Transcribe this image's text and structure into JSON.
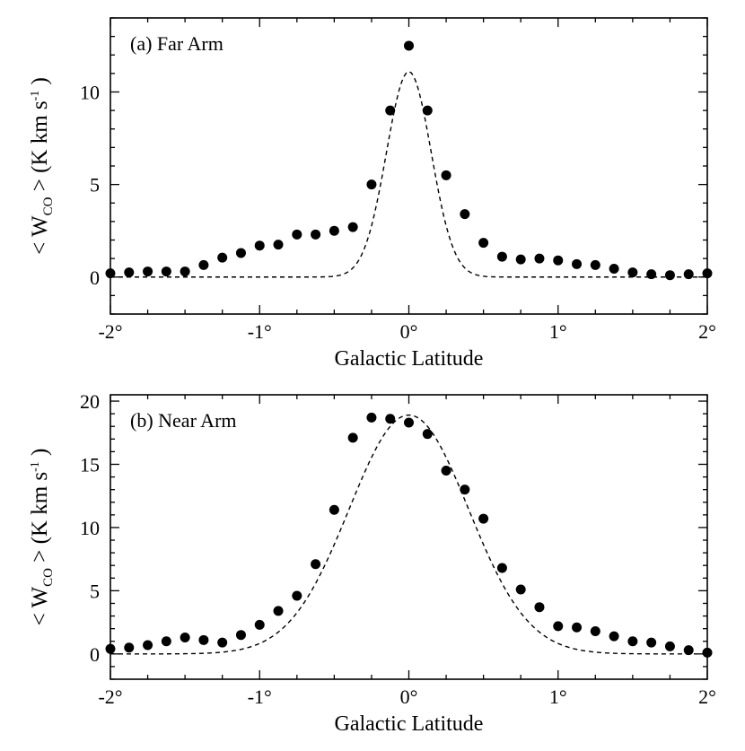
{
  "chart_data": [
    {
      "type": "scatter",
      "panel_label": "(a) Far Arm",
      "xlabel": "Galactic Latitude",
      "ylabel": {
        "prefix": "< W",
        "sub": "CO",
        "mid": " >  (K km s",
        "sup": "-1",
        "suffix": " )"
      },
      "xlim": [
        -2,
        2
      ],
      "ylim": [
        -2,
        14
      ],
      "xticks": [
        -2,
        -1,
        0,
        1,
        2
      ],
      "xticklabels": [
        "-2°",
        "-1°",
        "0°",
        "1°",
        "2°"
      ],
      "yticks": [
        0,
        5,
        10
      ],
      "yticklabels": [
        "0",
        "5",
        "10"
      ],
      "grid": false,
      "fit": {
        "style": "dashed",
        "amplitude": 11.1,
        "sigma": 0.15
      },
      "series": [
        {
          "x": [
            -2.0,
            -1.875,
            -1.75,
            -1.625,
            -1.5,
            -1.375,
            -1.25,
            -1.125,
            -1.0,
            -0.875,
            -0.75,
            -0.625,
            -0.5,
            -0.375,
            -0.25,
            -0.125,
            0.0,
            0.125,
            0.25,
            0.375,
            0.5,
            0.625,
            0.75,
            0.875,
            1.0,
            1.125,
            1.25,
            1.375,
            1.5,
            1.625,
            1.75,
            1.875,
            2.0
          ],
          "y": [
            0.2,
            0.25,
            0.3,
            0.3,
            0.3,
            0.65,
            1.05,
            1.3,
            1.7,
            1.75,
            2.3,
            2.3,
            2.5,
            2.7,
            5.0,
            9.0,
            12.5,
            9.0,
            5.5,
            3.4,
            1.85,
            1.1,
            0.95,
            1.0,
            0.9,
            0.7,
            0.65,
            0.45,
            0.25,
            0.15,
            0.1,
            0.15,
            0.2
          ]
        }
      ]
    },
    {
      "type": "scatter",
      "panel_label": "(b) Near Arm",
      "xlabel": "Galactic Latitude",
      "ylabel": {
        "prefix": "< W",
        "sub": "CO",
        "mid": " >  (K km s",
        "sup": "-1",
        "suffix": " )"
      },
      "xlim": [
        -2,
        2
      ],
      "ylim": [
        -2,
        20.5
      ],
      "xticks": [
        -2,
        -1,
        0,
        1,
        2
      ],
      "xticklabels": [
        "-2°",
        "-1°",
        "0°",
        "1°",
        "2°"
      ],
      "yticks": [
        0,
        5,
        10,
        15,
        20
      ],
      "yticklabels": [
        "0",
        "5",
        "10",
        "15",
        "20"
      ],
      "grid": false,
      "fit": {
        "style": "dashed",
        "amplitude": 18.9,
        "sigma": 0.4
      },
      "series": [
        {
          "x": [
            -2.0,
            -1.875,
            -1.75,
            -1.625,
            -1.5,
            -1.375,
            -1.25,
            -1.125,
            -1.0,
            -0.875,
            -0.75,
            -0.625,
            -0.5,
            -0.375,
            -0.25,
            -0.125,
            0.0,
            0.125,
            0.25,
            0.375,
            0.5,
            0.625,
            0.75,
            0.875,
            1.0,
            1.125,
            1.25,
            1.375,
            1.5,
            1.625,
            1.75,
            1.875,
            2.0
          ],
          "y": [
            0.4,
            0.5,
            0.7,
            1.0,
            1.3,
            1.1,
            0.9,
            1.5,
            2.3,
            3.4,
            4.6,
            7.1,
            11.4,
            17.1,
            18.7,
            18.6,
            18.3,
            17.4,
            14.5,
            13.0,
            10.7,
            6.8,
            5.1,
            3.7,
            2.2,
            2.1,
            1.8,
            1.4,
            1.0,
            0.9,
            0.6,
            0.3,
            0.1
          ]
        }
      ]
    }
  ]
}
